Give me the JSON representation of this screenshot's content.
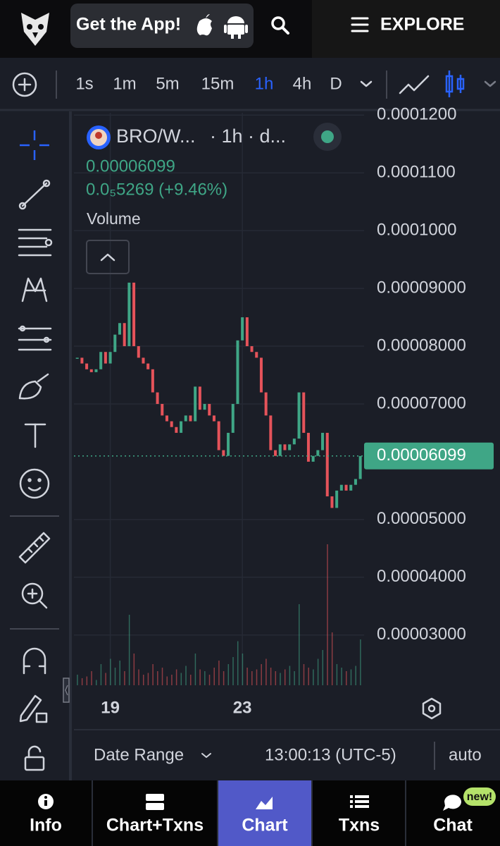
{
  "header": {
    "app_button": "Get the App!",
    "explore": "EXPLORE"
  },
  "toolbar": {
    "intervals": [
      "1s",
      "1m",
      "5m",
      "15m",
      "1h",
      "4h",
      "D"
    ]
  },
  "legend": {
    "pair": "BRO/W...",
    "interval": "· 1h · d...",
    "price": "0.00006099",
    "change": "0.0₅5269 (+9.46%)",
    "volume": "Volume"
  },
  "chart_data": {
    "type": "candlestick",
    "values": [
      7.8e-05,
      7.7e-05,
      7.6e-05,
      7.55e-05,
      7.6e-05,
      7.9e-05,
      7.7e-05,
      7.9e-05,
      8.2e-05,
      8.4e-05,
      8e-05,
      9.1e-05,
      8e-05,
      7.8e-05,
      7.7e-05,
      7.6e-05,
      7.2e-05,
      7e-05,
      6.8e-05,
      6.7e-05,
      6.6e-05,
      6.5e-05,
      6.7e-05,
      6.8e-05,
      6.7e-05,
      7.3e-05,
      6.9e-05,
      7e-05,
      6.8e-05,
      6.7e-05,
      6.2e-05,
      6.1e-05,
      6.5e-05,
      7e-05,
      8.1e-05,
      8.5e-05,
      8e-05,
      7.9e-05,
      7.8e-05,
      7.2e-05,
      6.8e-05,
      6.2e-05,
      6.1e-05,
      6.3e-05,
      6.2e-05,
      6.3e-05,
      6.4e-05,
      7.2e-05,
      6.5e-05,
      6e-05,
      6.1e-05,
      6.2e-05,
      6.5e-05,
      5.4e-05,
      5.2e-05,
      5.5e-05,
      5.6e-05,
      5.5e-05,
      5.6e-05,
      5.7e-05,
      6.099e-05
    ],
    "volume": [
      6,
      4,
      5,
      8,
      3,
      12,
      7,
      15,
      10,
      14,
      8,
      40,
      18,
      9,
      6,
      7,
      12,
      8,
      10,
      5,
      6,
      9,
      7,
      11,
      6,
      18,
      9,
      8,
      6,
      10,
      14,
      8,
      12,
      16,
      25,
      18,
      10,
      8,
      9,
      12,
      15,
      10,
      8,
      7,
      9,
      11,
      8,
      46,
      12,
      10,
      9,
      15,
      20,
      80,
      30,
      12,
      10,
      8,
      9,
      11,
      26
    ],
    "vlim": [
      0,
      100
    ],
    "xlim": [
      -0.7,
      60.8
    ],
    "xticks": [
      {
        "value": 7,
        "label": "19"
      },
      {
        "value": 35,
        "label": "23"
      }
    ],
    "ylim": [
      2.13e-05,
      0.0001204
    ],
    "yticks": [
      {
        "value": 0.00012,
        "label": "0.0001200"
      },
      {
        "value": 0.00011,
        "label": "0.0001100"
      },
      {
        "value": 0.0001,
        "label": "0.0001000"
      },
      {
        "value": 9e-05,
        "label": "0.00009000"
      },
      {
        "value": 8e-05,
        "label": "0.00008000"
      },
      {
        "value": 7e-05,
        "label": "0.00007000"
      },
      {
        "value": 5e-05,
        "label": "0.00005000"
      },
      {
        "value": 4e-05,
        "label": "0.00004000"
      },
      {
        "value": 3e-05,
        "label": "0.00003000"
      }
    ],
    "last_price": {
      "value": 6.099e-05,
      "label": "0.00006099"
    },
    "up_color": "#3fa686",
    "down_color": "#e5535a",
    "grid": true
  },
  "footer": {
    "date_range": "Date Range",
    "time": "13:00:13 (UTC-5)",
    "scale": "auto"
  },
  "nav": {
    "tabs": [
      "Info",
      "Chart+Txns",
      "Chart",
      "Txns",
      "Chat"
    ],
    "badge": "new!"
  }
}
